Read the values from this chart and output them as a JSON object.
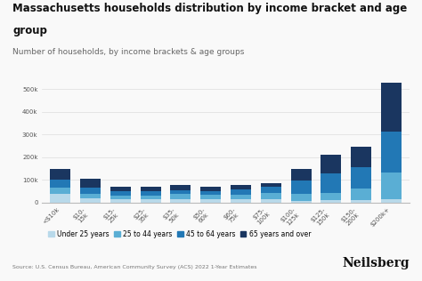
{
  "title_line1": "Massachusetts households distribution by income bracket and age",
  "title_line2": "group",
  "subtitle": "Number of households, by income brackets & age groups",
  "xtick_labels": [
    "<$10k",
    "$10-\n15k",
    "$15-\n25k",
    "$25-\n35k",
    "$35-\n50k",
    "$50-\n60k",
    "$60-\n75k",
    "$75-\n100k",
    "$100-\n125k",
    "$125-\n150k",
    "$150-\n200k",
    "$200k+"
  ],
  "series": {
    "Under 25 years": [
      38000,
      18000,
      12000,
      12000,
      14000,
      12000,
      13000,
      14000,
      7000,
      8000,
      9000,
      12000
    ],
    "25 to 44 years": [
      28000,
      20000,
      18000,
      18000,
      22000,
      20000,
      22000,
      28000,
      32000,
      32000,
      50000,
      120000
    ],
    "45 to 64 years": [
      33000,
      28000,
      18000,
      18000,
      18000,
      18000,
      20000,
      28000,
      58000,
      88000,
      95000,
      180000
    ],
    "65 years and over": [
      48000,
      38000,
      22000,
      22000,
      22000,
      20000,
      20000,
      15000,
      50000,
      80000,
      90000,
      215000
    ]
  },
  "colors": {
    "Under 25 years": "#b8d9ea",
    "25 to 44 years": "#5aaed4",
    "45 to 64 years": "#2278b5",
    "65 years and over": "#1a3660"
  },
  "ylim": [
    0,
    570000
  ],
  "yticks": [
    0,
    100000,
    200000,
    300000,
    400000,
    500000
  ],
  "ytick_labels": [
    "0",
    "100k",
    "200k",
    "300k",
    "400k",
    "500k"
  ],
  "source_text": "Source: U.S. Census Bureau, American Community Survey (ACS) 2022 1-Year Estimates",
  "brand_text": "Neilsberg",
  "bg_color": "#f9f9f9",
  "plot_bg_color": "#f9f9f9",
  "grid_color": "#dddddd",
  "title_fontsize": 8.5,
  "subtitle_fontsize": 6.5,
  "tick_fontsize": 5.0,
  "legend_fontsize": 5.5,
  "source_fontsize": 4.5,
  "brand_fontsize": 10
}
